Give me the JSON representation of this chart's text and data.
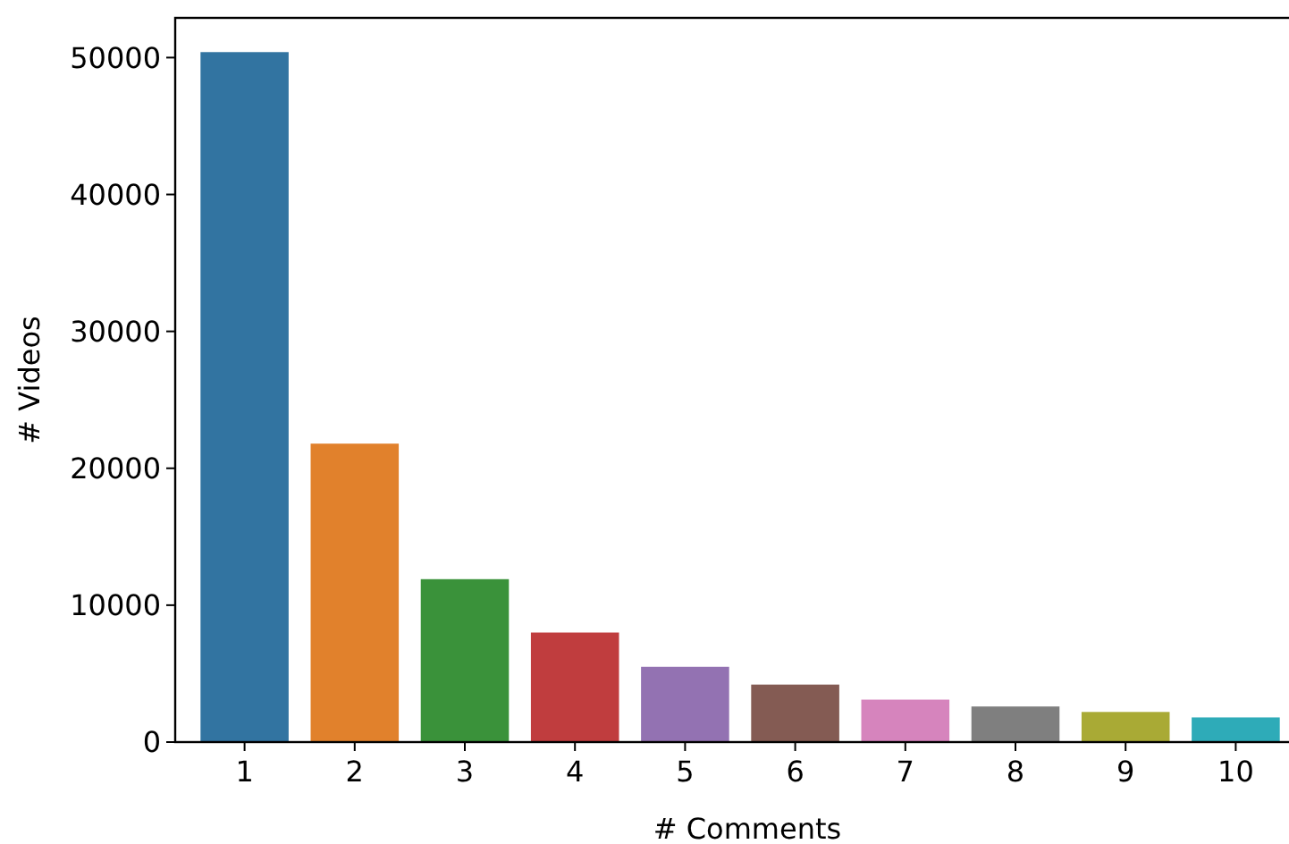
{
  "chart_data": {
    "type": "bar",
    "xlabel": "# Comments",
    "ylabel": "# Videos",
    "categories": [
      "1",
      "2",
      "3",
      "4",
      "5",
      "6",
      "7",
      "8",
      "9",
      "10"
    ],
    "values": [
      50400,
      21800,
      11900,
      8000,
      5500,
      4200,
      3100,
      2600,
      2200,
      1800
    ],
    "colors": [
      "#3274a1",
      "#e1812c",
      "#3a923a",
      "#c03d3e",
      "#9372b2",
      "#845b53",
      "#d684bd",
      "#7f7f7f",
      "#a9aa35",
      "#2eabb8"
    ],
    "ylim": [
      0,
      52900
    ],
    "yticks": [
      0,
      10000,
      20000,
      30000,
      40000,
      50000
    ],
    "grid": false
  }
}
